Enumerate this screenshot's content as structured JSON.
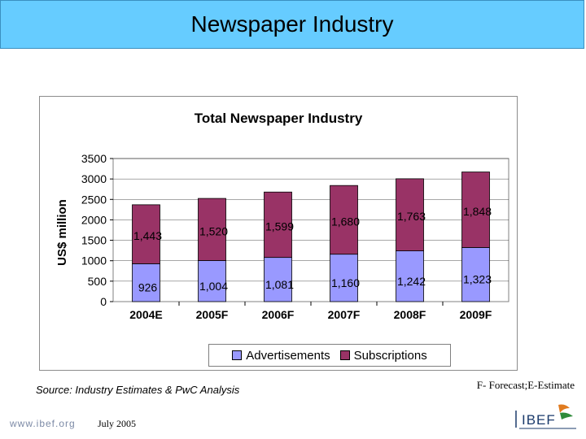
{
  "header": {
    "title": "Newspaper Industry"
  },
  "chart_data": {
    "type": "bar",
    "stacked": true,
    "title": "Total Newspaper Industry",
    "xlabel": "",
    "ylabel": "US$ million",
    "ylim": [
      0,
      3500
    ],
    "yticks": [
      "0",
      "500",
      "1000",
      "1500",
      "2000",
      "2500",
      "3000",
      "3500"
    ],
    "grid": true,
    "legend_position": "bottom",
    "categories": [
      "2004E",
      "2005F",
      "2006F",
      "2007F",
      "2008F",
      "2009F"
    ],
    "series": [
      {
        "name": "Advertisements",
        "color": "#9999ff",
        "values": [
          926,
          1004,
          1081,
          1160,
          1242,
          1323
        ],
        "labels": [
          "926",
          "1,004",
          "1,081",
          "1,160",
          "1,242",
          "1,323"
        ]
      },
      {
        "name": "Subscriptions",
        "color": "#993366",
        "values": [
          1443,
          1520,
          1599,
          1680,
          1763,
          1848
        ],
        "labels": [
          "1,443",
          "1,520",
          "1,599",
          "1,680",
          "1,763",
          "1,848"
        ]
      }
    ]
  },
  "footer": {
    "source": "Source: Industry Estimates & PwC Analysis",
    "note": "F- Forecast;E-Estimate",
    "site": "www.ibef.org",
    "date": "July 2005",
    "logo_text": "IBEF"
  }
}
